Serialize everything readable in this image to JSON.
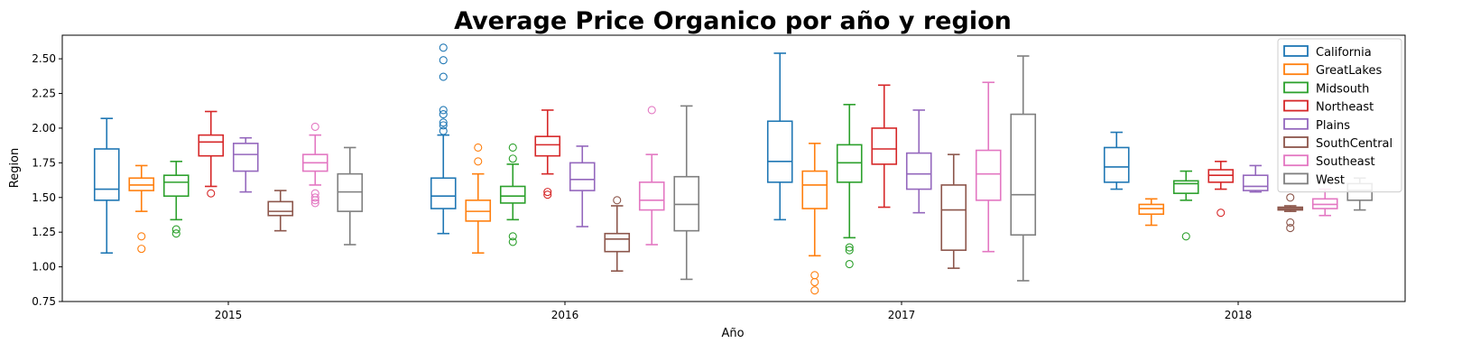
{
  "chart_data": {
    "type": "boxplot",
    "title": "Average Price Organico por año y region",
    "xlabel": "Año",
    "ylabel": "Region",
    "ylim": [
      0.75,
      2.67
    ],
    "yticks": [
      "0.75",
      "1.00",
      "1.25",
      "1.50",
      "1.75",
      "2.00",
      "2.25",
      "2.50"
    ],
    "categories": [
      "2015",
      "2016",
      "2017",
      "2018"
    ],
    "legend_position": "top-right",
    "grid": false,
    "series": [
      {
        "name": "California",
        "color": "#1f77b4",
        "boxes": [
          {
            "whislo": 1.1,
            "q1": 1.48,
            "med": 1.56,
            "q3": 1.85,
            "whishi": 2.07,
            "fliers": []
          },
          {
            "whislo": 1.24,
            "q1": 1.42,
            "med": 1.51,
            "q3": 1.64,
            "whishi": 1.95,
            "fliers": [
              1.98,
              2.02,
              2.04,
              2.1,
              2.13,
              2.37,
              2.49,
              2.58
            ]
          },
          {
            "whislo": 1.34,
            "q1": 1.61,
            "med": 1.76,
            "q3": 2.05,
            "whishi": 2.54,
            "fliers": []
          },
          {
            "whislo": 1.56,
            "q1": 1.61,
            "med": 1.72,
            "q3": 1.86,
            "whishi": 1.97,
            "fliers": []
          }
        ]
      },
      {
        "name": "GreatLakes",
        "color": "#ff7f0e",
        "boxes": [
          {
            "whislo": 1.4,
            "q1": 1.55,
            "med": 1.59,
            "q3": 1.64,
            "whishi": 1.73,
            "fliers": [
              1.13,
              1.22
            ]
          },
          {
            "whislo": 1.1,
            "q1": 1.33,
            "med": 1.4,
            "q3": 1.48,
            "whishi": 1.67,
            "fliers": [
              1.76,
              1.86
            ]
          },
          {
            "whislo": 1.08,
            "q1": 1.42,
            "med": 1.59,
            "q3": 1.69,
            "whishi": 1.89,
            "fliers": [
              0.83,
              0.89,
              0.94
            ]
          },
          {
            "whislo": 1.3,
            "q1": 1.38,
            "med": 1.42,
            "q3": 1.45,
            "whishi": 1.49,
            "fliers": []
          }
        ]
      },
      {
        "name": "Midsouth",
        "color": "#2ca02c",
        "boxes": [
          {
            "whislo": 1.34,
            "q1": 1.51,
            "med": 1.61,
            "q3": 1.66,
            "whishi": 1.76,
            "fliers": [
              1.24,
              1.27
            ]
          },
          {
            "whislo": 1.34,
            "q1": 1.46,
            "med": 1.51,
            "q3": 1.58,
            "whishi": 1.74,
            "fliers": [
              1.18,
              1.22,
              1.78,
              1.86
            ]
          },
          {
            "whislo": 1.21,
            "q1": 1.61,
            "med": 1.75,
            "q3": 1.88,
            "whishi": 2.17,
            "fliers": [
              1.02,
              1.12,
              1.14
            ]
          },
          {
            "whislo": 1.48,
            "q1": 1.53,
            "med": 1.6,
            "q3": 1.62,
            "whishi": 1.69,
            "fliers": [
              1.22
            ]
          }
        ]
      },
      {
        "name": "Northeast",
        "color": "#d62728",
        "boxes": [
          {
            "whislo": 1.58,
            "q1": 1.8,
            "med": 1.9,
            "q3": 1.95,
            "whishi": 2.12,
            "fliers": [
              1.53
            ]
          },
          {
            "whislo": 1.67,
            "q1": 1.8,
            "med": 1.88,
            "q3": 1.94,
            "whishi": 2.13,
            "fliers": [
              1.52,
              1.54
            ]
          },
          {
            "whislo": 1.43,
            "q1": 1.74,
            "med": 1.85,
            "q3": 2.0,
            "whishi": 2.31,
            "fliers": []
          },
          {
            "whislo": 1.56,
            "q1": 1.61,
            "med": 1.66,
            "q3": 1.7,
            "whishi": 1.76,
            "fliers": [
              1.39
            ]
          }
        ]
      },
      {
        "name": "Plains",
        "color": "#9467bd",
        "boxes": [
          {
            "whislo": 1.54,
            "q1": 1.69,
            "med": 1.81,
            "q3": 1.89,
            "whishi": 1.93,
            "fliers": []
          },
          {
            "whislo": 1.29,
            "q1": 1.55,
            "med": 1.63,
            "q3": 1.75,
            "whishi": 1.87,
            "fliers": []
          },
          {
            "whislo": 1.39,
            "q1": 1.56,
            "med": 1.67,
            "q3": 1.82,
            "whishi": 2.13,
            "fliers": []
          },
          {
            "whislo": 1.54,
            "q1": 1.55,
            "med": 1.58,
            "q3": 1.66,
            "whishi": 1.73,
            "fliers": []
          }
        ]
      },
      {
        "name": "SouthCentral",
        "color": "#8c564b",
        "boxes": [
          {
            "whislo": 1.26,
            "q1": 1.37,
            "med": 1.4,
            "q3": 1.47,
            "whishi": 1.55,
            "fliers": []
          },
          {
            "whislo": 0.97,
            "q1": 1.11,
            "med": 1.2,
            "q3": 1.24,
            "whishi": 1.44,
            "fliers": [
              1.48
            ]
          },
          {
            "whislo": 0.99,
            "q1": 1.12,
            "med": 1.41,
            "q3": 1.59,
            "whishi": 1.81,
            "fliers": []
          },
          {
            "whislo": 1.4,
            "q1": 1.41,
            "med": 1.42,
            "q3": 1.43,
            "whishi": 1.44,
            "fliers": [
              1.28,
              1.32,
              1.5
            ]
          }
        ]
      },
      {
        "name": "Southeast",
        "color": "#e377c2",
        "boxes": [
          {
            "whislo": 1.59,
            "q1": 1.69,
            "med": 1.75,
            "q3": 1.81,
            "whishi": 1.95,
            "fliers": [
              1.46,
              1.48,
              1.5,
              1.53,
              2.01
            ]
          },
          {
            "whislo": 1.16,
            "q1": 1.41,
            "med": 1.48,
            "q3": 1.61,
            "whishi": 1.81,
            "fliers": [
              2.13
            ]
          },
          {
            "whislo": 1.11,
            "q1": 1.48,
            "med": 1.67,
            "q3": 1.84,
            "whishi": 2.33,
            "fliers": []
          },
          {
            "whislo": 1.37,
            "q1": 1.42,
            "med": 1.45,
            "q3": 1.49,
            "whishi": 1.56,
            "fliers": []
          }
        ]
      },
      {
        "name": "West",
        "color": "#7f7f7f",
        "boxes": [
          {
            "whislo": 1.16,
            "q1": 1.4,
            "med": 1.54,
            "q3": 1.67,
            "whishi": 1.86,
            "fliers": []
          },
          {
            "whislo": 0.91,
            "q1": 1.26,
            "med": 1.45,
            "q3": 1.65,
            "whishi": 2.16,
            "fliers": []
          },
          {
            "whislo": 0.9,
            "q1": 1.23,
            "med": 1.52,
            "q3": 2.1,
            "whishi": 2.52,
            "fliers": []
          },
          {
            "whislo": 1.41,
            "q1": 1.48,
            "med": 1.55,
            "q3": 1.6,
            "whishi": 1.64,
            "fliers": []
          }
        ]
      }
    ]
  }
}
